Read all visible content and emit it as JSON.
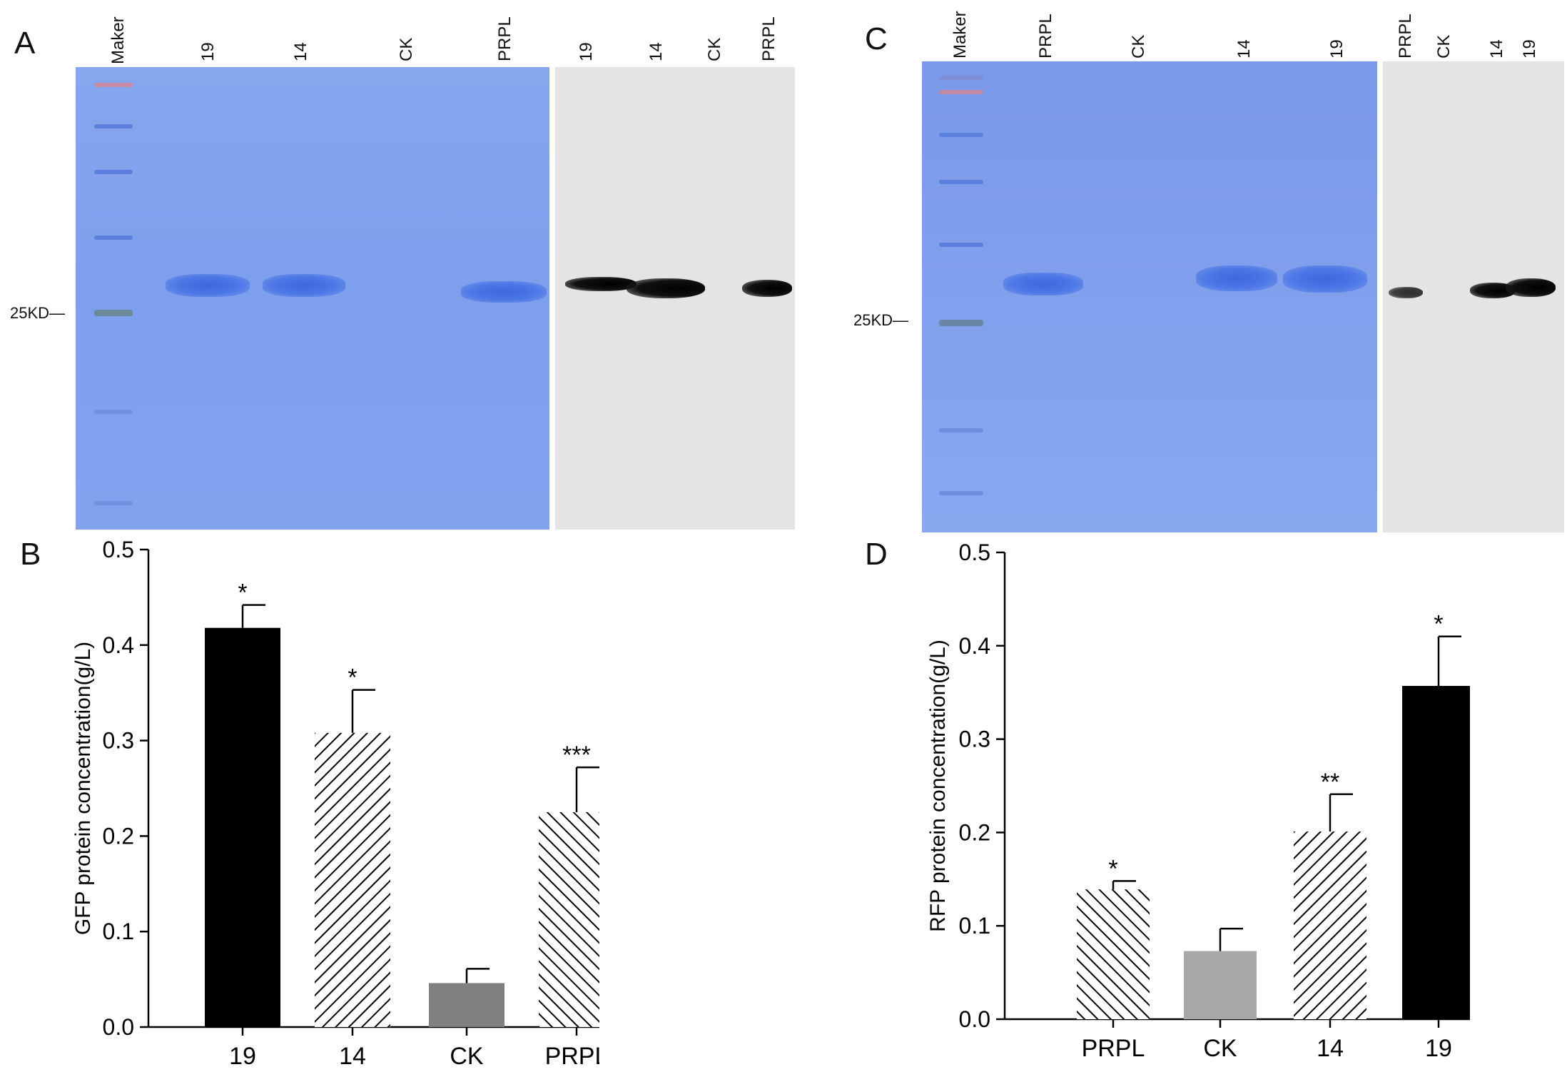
{
  "panels": {
    "A": "A",
    "B": "B",
    "C": "C",
    "D": "D"
  },
  "gel_A": {
    "marker_label": "Maker",
    "kd_label": "25KD",
    "coomassie_lanes": [
      "19",
      "14",
      "CK",
      "PRPL"
    ],
    "western_lanes": [
      "19",
      "14",
      "CK",
      "PRPL"
    ]
  },
  "gel_C": {
    "marker_label": "Maker",
    "kd_label": "25KD",
    "coomassie_lanes": [
      "PRPL",
      "CK",
      "14",
      "19"
    ],
    "western_lanes": [
      "PRPL",
      "CK",
      "14",
      "19"
    ]
  },
  "chart_data": [
    {
      "type": "bar",
      "panel": "B",
      "categories": [
        "19",
        "14",
        "CK",
        "PRPL"
      ],
      "values": [
        0.418,
        0.308,
        0.046,
        0.225
      ],
      "errors": [
        0.024,
        0.045,
        0.015,
        0.047
      ],
      "significance": [
        "*",
        "*",
        "",
        "***"
      ],
      "fills": [
        "solid-black",
        "hatch-forward",
        "solid-grey",
        "hatch-back"
      ],
      "ylabel": "GFP protein concentration(g/L)",
      "ylim": [
        0,
        0.5
      ],
      "yticks": [
        "0.0",
        "0.1",
        "0.2",
        "0.3",
        "0.4",
        "0.5"
      ],
      "colors": {
        "black": "#000000",
        "grey": "#808080"
      }
    },
    {
      "type": "bar",
      "panel": "D",
      "categories": [
        "PRPL",
        "CK",
        "14",
        "19"
      ],
      "values": [
        0.139,
        0.073,
        0.201,
        0.357
      ],
      "errors": [
        0.009,
        0.024,
        0.04,
        0.053
      ],
      "significance": [
        "*",
        "",
        "**",
        "*"
      ],
      "fills": [
        "hatch-back",
        "solid-lightgrey",
        "hatch-forward",
        "solid-black"
      ],
      "ylabel": "RFP protein concentration(g/L)",
      "ylim": [
        0,
        0.5
      ],
      "yticks": [
        "0.0",
        "0.1",
        "0.2",
        "0.3",
        "0.4",
        "0.5"
      ],
      "colors": {
        "black": "#000000",
        "grey": "#a8a8a8"
      }
    }
  ]
}
